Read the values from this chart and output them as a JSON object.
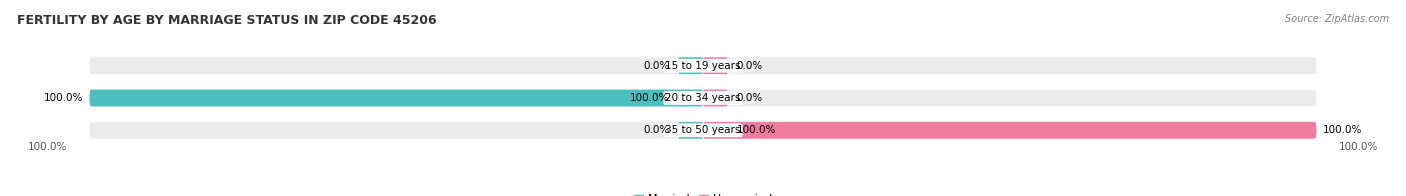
{
  "title": "FERTILITY BY AGE BY MARRIAGE STATUS IN ZIP CODE 45206",
  "source": "Source: ZipAtlas.com",
  "categories": [
    "15 to 19 years",
    "20 to 34 years",
    "35 to 50 years"
  ],
  "married_values": [
    0.0,
    100.0,
    0.0
  ],
  "unmarried_values": [
    0.0,
    0.0,
    100.0
  ],
  "married_color": "#4BBFBF",
  "unmarried_color": "#F07CA0",
  "bar_bg_color": "#EBEBEB",
  "bar_height": 0.52,
  "title_fontsize": 9.0,
  "label_fontsize": 7.5,
  "source_fontsize": 7.0,
  "legend_fontsize": 8.0,
  "axis_label_left": "100.0%",
  "axis_label_right": "100.0%",
  "fig_bg_color": "#FFFFFF",
  "xlim_left": -110,
  "xlim_right": 110
}
